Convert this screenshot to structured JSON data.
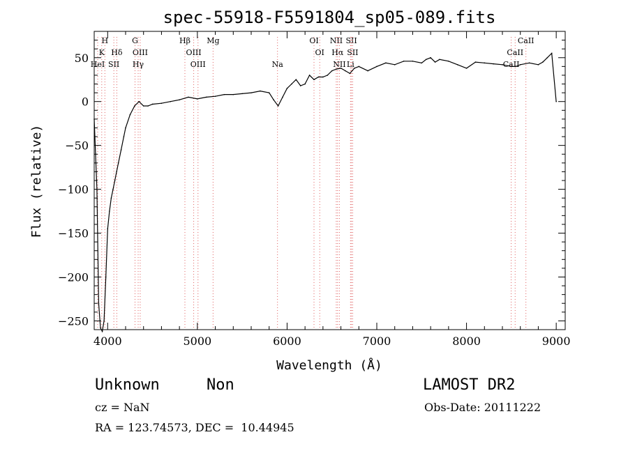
{
  "chart_data": {
    "type": "line",
    "title": "spec-55918-F5591804_sp05-089.fits",
    "xlabel": "Wavelength (Å)",
    "ylabel": "Flux (relative)",
    "xlim": [
      3850,
      9100
    ],
    "ylim": [
      -260,
      80
    ],
    "x_ticks": [
      4000,
      5000,
      6000,
      7000,
      8000,
      9000
    ],
    "y_ticks": [
      50,
      0,
      -50,
      -100,
      -150,
      -200,
      -250
    ],
    "grid": false,
    "series": [
      {
        "x": [
          3850,
          3880,
          3900,
          3920,
          3940,
          3960,
          3980,
          4000,
          4020,
          4040,
          4060,
          4080,
          4100,
          4120,
          4150,
          4180,
          4200,
          4250,
          4300,
          4350,
          4400,
          4450,
          4500,
          4600,
          4700,
          4800,
          4900,
          5000,
          5100,
          5200,
          5300,
          5400,
          5500,
          5600,
          5700,
          5800,
          5850,
          5900,
          5950,
          6000,
          6050,
          6100,
          6150,
          6200,
          6250,
          6300,
          6350,
          6400,
          6450,
          6500,
          6550,
          6600,
          6650,
          6700,
          6750,
          6800,
          6900,
          7000,
          7100,
          7200,
          7300,
          7400,
          7500,
          7550,
          7600,
          7650,
          7700,
          7800,
          7900,
          8000,
          8100,
          8200,
          8300,
          8400,
          8500,
          8550,
          8600,
          8700,
          8800,
          8850,
          8900,
          8950,
          9000
        ],
        "y": [
          -20,
          -100,
          -230,
          -258,
          -262,
          -250,
          -200,
          -145,
          -125,
          -110,
          -100,
          -90,
          -80,
          -70,
          -55,
          -40,
          -30,
          -15,
          -5,
          0,
          -5,
          -5,
          -3,
          -2,
          0,
          2,
          5,
          3,
          5,
          6,
          8,
          8,
          9,
          10,
          12,
          10,
          2,
          -5,
          5,
          15,
          20,
          25,
          18,
          20,
          30,
          25,
          28,
          28,
          30,
          35,
          37,
          38,
          35,
          32,
          38,
          40,
          35,
          40,
          44,
          42,
          46,
          46,
          44,
          48,
          50,
          45,
          48,
          46,
          42,
          38,
          45,
          44,
          43,
          42,
          40,
          40,
          42,
          44,
          42,
          45,
          50,
          55,
          0
        ]
      }
    ],
    "line_markers": [
      {
        "label": "H",
        "x": 3969,
        "row": 0
      },
      {
        "label": "K",
        "x": 3934,
        "row": 1
      },
      {
        "label": "HeI",
        "x": 3889,
        "row": 2
      },
      {
        "label": "Hδ",
        "x": 4102,
        "row": 1
      },
      {
        "label": "SII",
        "x": 4069,
        "row": 2
      },
      {
        "label": "G",
        "x": 4305,
        "row": 0
      },
      {
        "label": "OIII",
        "x": 4363,
        "row": 1
      },
      {
        "label": "Hγ",
        "x": 4340,
        "row": 2
      },
      {
        "label": "Hβ",
        "x": 4861,
        "row": 0
      },
      {
        "label": "OIII",
        "x": 4959,
        "row": 1
      },
      {
        "label": "OIII",
        "x": 5007,
        "row": 2
      },
      {
        "label": "Mg",
        "x": 5175,
        "row": 0
      },
      {
        "label": "Na",
        "x": 5893,
        "row": 2
      },
      {
        "label": "OI",
        "x": 6300,
        "row": 0
      },
      {
        "label": "OI",
        "x": 6364,
        "row": 1
      },
      {
        "label": "NII",
        "x": 6548,
        "row": 0
      },
      {
        "label": "SII",
        "x": 6717,
        "row": 0
      },
      {
        "label": "Hα",
        "x": 6563,
        "row": 1
      },
      {
        "label": "SII",
        "x": 6731,
        "row": 1
      },
      {
        "label": "NII",
        "x": 6583,
        "row": 2
      },
      {
        "label": "Li",
        "x": 6707,
        "row": 2
      },
      {
        "label": "CaII",
        "x": 8662,
        "row": 0
      },
      {
        "label": "CaII",
        "x": 8542,
        "row": 1
      },
      {
        "label": "CaII",
        "x": 8498,
        "row": 2
      }
    ]
  },
  "info": {
    "class_label": "Unknown",
    "subclass_label": "Non",
    "survey": "LAMOST DR2",
    "cz": "cz = NaN",
    "obs_date": "Obs-Date: 20111222",
    "coords": "RA = 123.74573, DEC =  10.44945"
  }
}
